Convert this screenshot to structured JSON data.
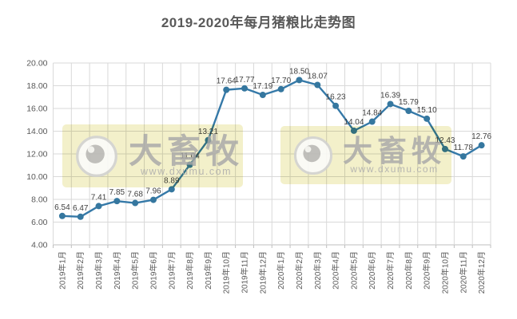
{
  "page": {
    "background": "#ffffff"
  },
  "title": "2019-2020年每月猪粮比走势图",
  "watermark": {
    "brand": "大畜牧",
    "url": "www.dxumu.com",
    "eye_icon": "eye-logo",
    "box_color": "#F1EDC3"
  },
  "colors": {
    "line": "#3579A8",
    "marker": "#35779F",
    "grid": "#D9D9D9",
    "axis": "#BFBFBF",
    "data_label": "#404040",
    "tick_text": "#595959",
    "title_text": "#595959"
  },
  "chart_data": {
    "type": "line",
    "title": "2019-2020年每月猪粮比走势图",
    "categories": [
      "2019年1月",
      "2019年2月",
      "2019年3月",
      "2019年4月",
      "2019年5月",
      "2019年6月",
      "2019年7月",
      "2019年8月",
      "2019年9月",
      "2019年10月",
      "2019年11月",
      "2019年12月",
      "2020年1月",
      "2020年2月",
      "2020年3月",
      "2020年4月",
      "2020年5月",
      "2020年6月",
      "2020年7月",
      "2020年8月",
      "2020年9月",
      "2020年10月",
      "2020年11月",
      "2020年12月"
    ],
    "values": [
      6.54,
      6.47,
      7.41,
      7.85,
      7.68,
      7.96,
      8.89,
      11.04,
      13.21,
      17.64,
      17.77,
      17.19,
      17.7,
      18.5,
      18.07,
      16.23,
      14.04,
      14.84,
      16.39,
      15.79,
      15.1,
      12.43,
      11.78,
      12.76
    ],
    "xlabel": "",
    "ylabel": "",
    "ylim": [
      4,
      20
    ],
    "ytick_step": 2,
    "ytick_decimals": 2,
    "grid": true,
    "data_labels": true,
    "legend": "none"
  }
}
